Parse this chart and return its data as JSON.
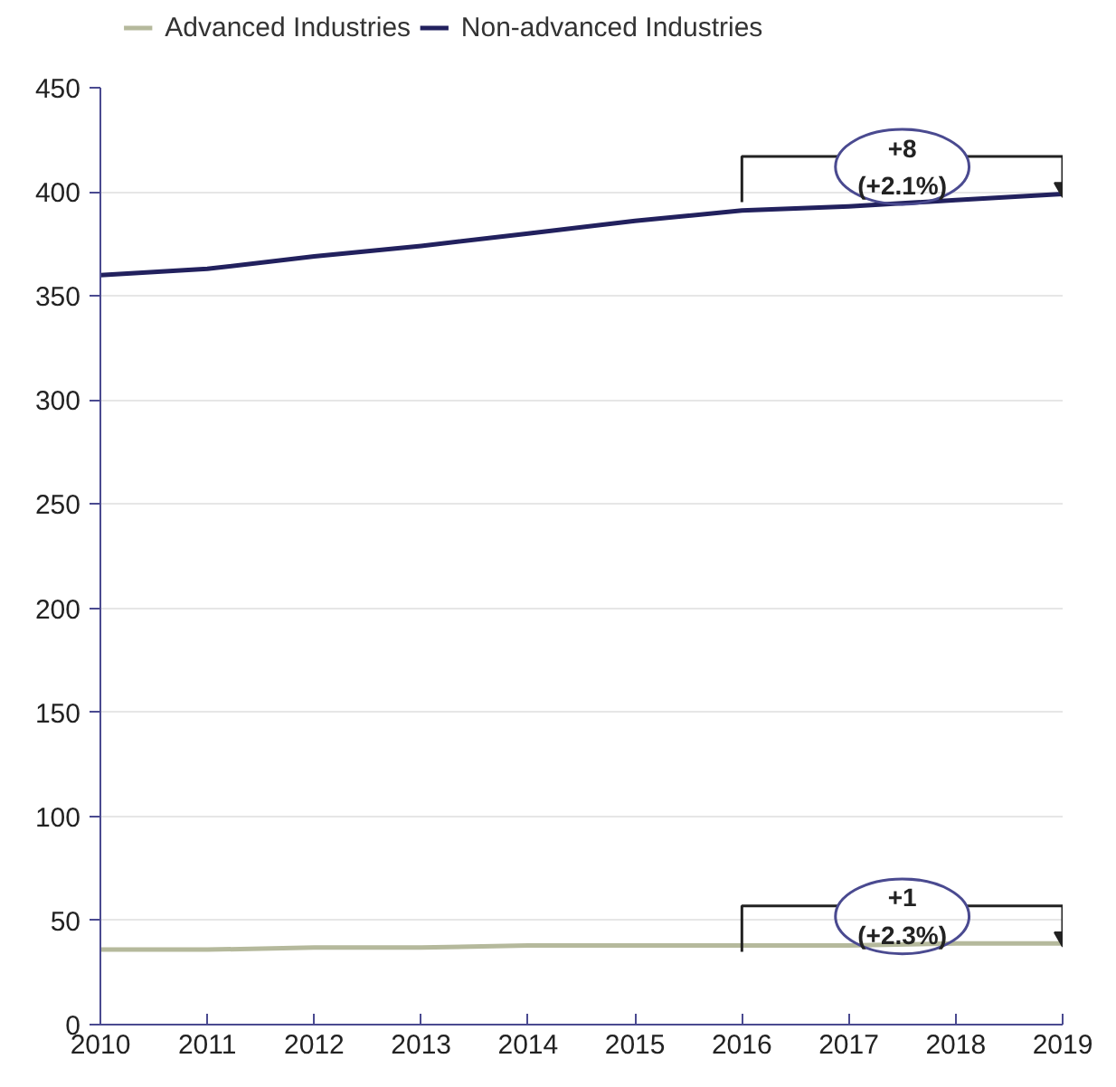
{
  "chart_data": {
    "type": "line",
    "x": [
      2010,
      2011,
      2012,
      2013,
      2014,
      2015,
      2016,
      2017,
      2018,
      2019
    ],
    "series": [
      {
        "name": "Advanced Industries",
        "color": "#b5b99c",
        "values": [
          36,
          36,
          37,
          37,
          38,
          38,
          38,
          38,
          39,
          39
        ]
      },
      {
        "name": "Non-advanced Industries",
        "color": "#22215e",
        "values": [
          360,
          363,
          369,
          374,
          380,
          386,
          391,
          393,
          396,
          399
        ]
      }
    ],
    "xlim": [
      2010,
      2019
    ],
    "xticks": [
      2010,
      2011,
      2012,
      2013,
      2014,
      2015,
      2016,
      2017,
      2018,
      2019
    ],
    "ylim": [
      0,
      450
    ],
    "yticks": [
      0,
      50,
      100,
      150,
      200,
      250,
      300,
      350,
      400,
      450
    ],
    "grid": "y",
    "legend": "top left",
    "marker": "none",
    "line_style": "solid",
    "annotations": [
      {
        "text": "+1\n(+2.3%)",
        "x": 2019,
        "y": 39
      },
      {
        "text": "+8\n(+2.1%)",
        "x": 2019,
        "y": 399
      }
    ]
  }
}
